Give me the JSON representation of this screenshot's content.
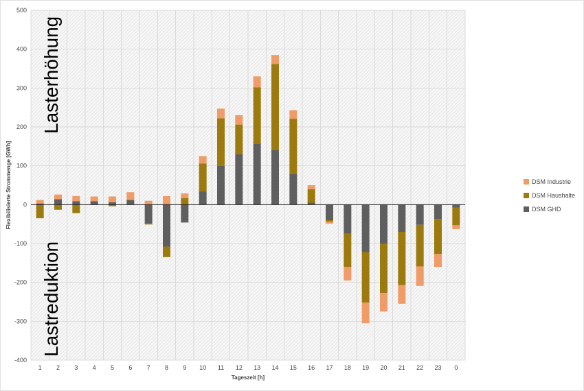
{
  "chart_data": {
    "type": "bar",
    "stacked": true,
    "xlabel": "Tageszeit [h]",
    "ylabel": "Flexibilisierte Strommenge [GWh]",
    "ylim": [
      -400,
      500
    ],
    "yticks": [
      500,
      400,
      300,
      200,
      100,
      0,
      -100,
      -200,
      -300,
      -400
    ],
    "categories": [
      "1",
      "2",
      "3",
      "4",
      "5",
      "6",
      "7",
      "8",
      "9",
      "10",
      "11",
      "12",
      "13",
      "14",
      "15",
      "16",
      "17",
      "18",
      "19",
      "20",
      "21",
      "22",
      "23",
      "0"
    ],
    "series": [
      {
        "name": "DSM GHD",
        "color": "#5f5f5f",
        "values": [
          3,
          14,
          9,
          9,
          6,
          12,
          -48,
          -108,
          -46,
          34,
          100,
          130,
          157,
          140,
          79,
          5,
          -40,
          -75,
          -122,
          -100,
          -70,
          -52,
          -37,
          -8
        ]
      },
      {
        "name": "DSM Haushalte",
        "color": "#9c7a0e",
        "values": [
          -35,
          -13,
          -22,
          0,
          -4,
          0,
          -3,
          -27,
          17,
          72,
          122,
          76,
          145,
          222,
          142,
          35,
          -4,
          -85,
          -130,
          -127,
          -137,
          -107,
          -90,
          -45
        ]
      },
      {
        "name": "DSM Industrie",
        "color": "#ef9c68",
        "values": [
          9,
          12,
          13,
          12,
          15,
          20,
          10,
          22,
          12,
          19,
          25,
          24,
          28,
          23,
          22,
          10,
          -5,
          -35,
          -53,
          -48,
          -48,
          -50,
          -33,
          -10
        ]
      }
    ],
    "annotations": [
      "Lasterhöhung",
      "Lastreduktion"
    ],
    "legend": "right",
    "grid": true
  }
}
